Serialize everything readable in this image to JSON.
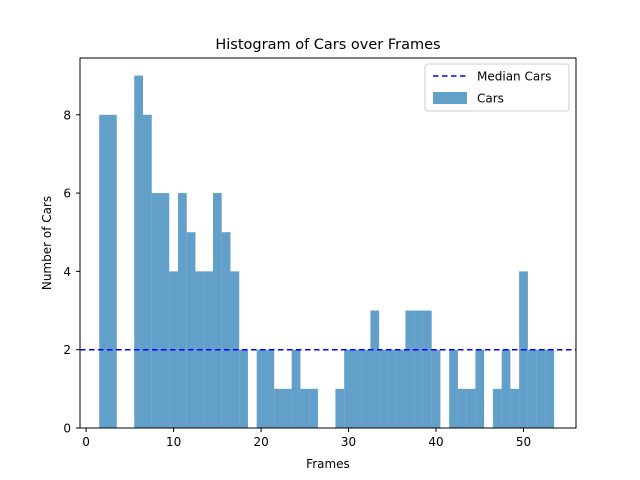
{
  "chart_data": {
    "type": "bar",
    "title": "Histogram of Cars over Frames",
    "xlabel": "Frames",
    "ylabel": "Number of Cars",
    "xlim": [
      -0.7,
      56
    ],
    "ylim": [
      0,
      9.45
    ],
    "xticks": [
      0,
      10,
      20,
      30,
      40,
      50
    ],
    "yticks": [
      0,
      2,
      4,
      6,
      8
    ],
    "grid": false,
    "legend_position": "top-right",
    "bar_color": "#1f77b4",
    "bar_opacity": 0.7,
    "median_line_color": "#0000ff",
    "series": [
      {
        "name": "Cars",
        "x": [
          2,
          3,
          6,
          7,
          8,
          9,
          10,
          11,
          12,
          13,
          14,
          15,
          16,
          17,
          18,
          20,
          21,
          22,
          23,
          24,
          25,
          26,
          27,
          29,
          30,
          31,
          32,
          33,
          34,
          35,
          36,
          37,
          38,
          39,
          40,
          42,
          43,
          44,
          45,
          47,
          48,
          49,
          50,
          51,
          52,
          53
        ],
        "values": [
          8,
          8,
          9,
          8,
          6,
          6,
          4,
          6,
          5,
          4,
          4,
          6,
          5,
          4,
          2,
          2,
          2,
          1,
          1,
          2,
          1,
          1,
          0,
          1,
          2,
          2,
          2,
          3,
          2,
          2,
          2,
          3,
          3,
          3,
          2,
          2,
          1,
          1,
          2,
          1,
          2,
          1,
          4,
          2,
          2,
          2
        ]
      },
      {
        "name": "Median Cars",
        "type": "hline",
        "value": 2
      }
    ]
  }
}
